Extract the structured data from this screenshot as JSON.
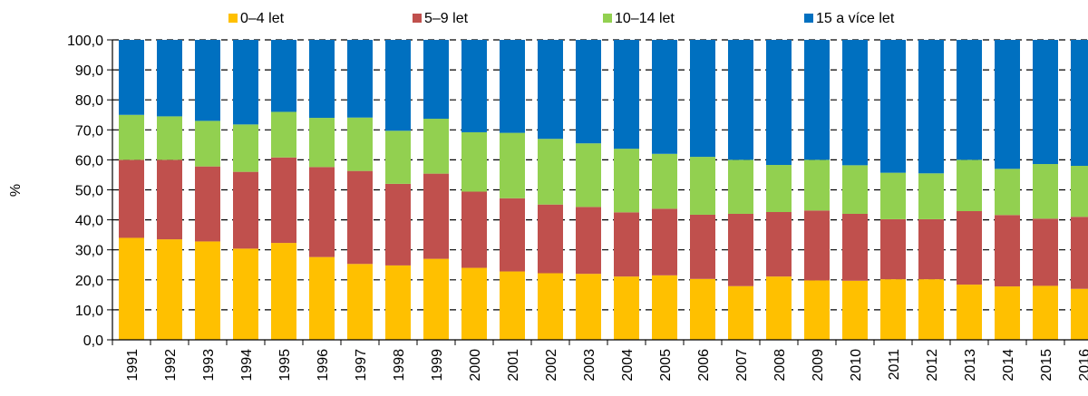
{
  "chart_data": {
    "type": "bar",
    "stacked": true,
    "categories": [
      "1991",
      "1992",
      "1993",
      "1994",
      "1995",
      "1996",
      "1997",
      "1998",
      "1999",
      "2000",
      "2001",
      "2002",
      "2003",
      "2004",
      "2005",
      "2006",
      "2007",
      "2008",
      "2009",
      "2010",
      "2011",
      "2012",
      "2013",
      "2014",
      "2015",
      "2016"
    ],
    "series": [
      {
        "name": "0–4 let",
        "color": "#FFC000",
        "values": [
          34.0,
          33.5,
          32.8,
          30.4,
          32.3,
          27.6,
          25.3,
          24.8,
          27.0,
          24.0,
          22.8,
          22.2,
          22.0,
          21.1,
          21.5,
          20.3,
          17.9,
          21.1,
          19.8,
          19.7,
          20.2,
          20.2,
          18.4,
          17.8,
          18.0,
          17.0
        ]
      },
      {
        "name": "5–9 let",
        "color": "#C0504D",
        "values": [
          26.0,
          26.5,
          25.0,
          25.6,
          28.5,
          30.0,
          31.0,
          27.2,
          28.4,
          25.4,
          24.4,
          22.9,
          22.3,
          21.4,
          22.2,
          21.4,
          24.1,
          21.5,
          23.3,
          22.3,
          20.0,
          20.0,
          24.5,
          23.8,
          22.4,
          24.0
        ]
      },
      {
        "name": "10–14 let",
        "color": "#92D050",
        "values": [
          15.0,
          14.5,
          15.2,
          15.8,
          15.2,
          16.4,
          17.8,
          17.7,
          18.3,
          19.8,
          21.8,
          21.9,
          21.2,
          21.2,
          18.3,
          19.3,
          18.0,
          15.7,
          16.9,
          16.2,
          15.5,
          15.3,
          17.1,
          15.4,
          18.2,
          17.0
        ]
      },
      {
        "name": "15 a více let",
        "color": "#0070C0",
        "values": [
          25.0,
          25.5,
          27.0,
          28.2,
          24.0,
          26.0,
          25.9,
          30.3,
          26.3,
          30.8,
          31.0,
          33.0,
          34.5,
          36.3,
          38.0,
          39.0,
          40.0,
          41.7,
          40.0,
          41.8,
          44.3,
          44.5,
          40.0,
          43.0,
          41.4,
          42.0
        ]
      }
    ],
    "ylabel": "%",
    "xlabel": "",
    "ylim": [
      0,
      100
    ],
    "y_ticks": [
      "0,0",
      "10,0",
      "20,0",
      "30,0",
      "40,0",
      "50,0",
      "60,0",
      "70,0",
      "80,0",
      "90,0",
      "100,0"
    ],
    "grid": true,
    "legend_position": "top"
  }
}
